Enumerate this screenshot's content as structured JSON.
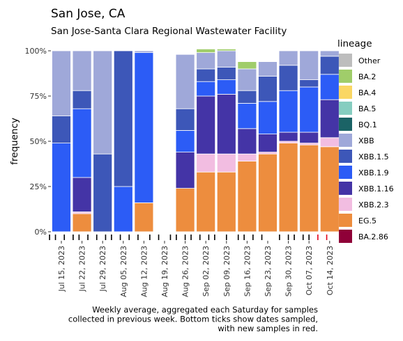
{
  "chart_data": {
    "type": "bar",
    "stacked": true,
    "title": "San Jose, CA",
    "subtitle": "San Jose-Santa Clara Regional Wastewater Facility",
    "ylabel": "frequency",
    "xlabel": "",
    "ylim": [
      0,
      1
    ],
    "y_ticks": [
      "0%",
      "25%",
      "50%",
      "75%",
      "100%"
    ],
    "x_tick_labels": [
      "Jul 15, 2023",
      "Jul 22, 2023",
      "Jul 29, 2023",
      "Aug 05, 2023",
      "Aug 12, 2023",
      "Aug 19, 2023",
      "Aug 26, 2023",
      "Sep 02, 2023",
      "Sep 09, 2023",
      "Sep 16, 2023",
      "Sep 23, 2023",
      "Sep 30, 2023",
      "Oct 07, 2023",
      "Oct 14, 2023"
    ],
    "categories": [
      "Jul 15, 2023",
      "Jul 22, 2023",
      "Jul 29, 2023",
      "Aug 05, 2023",
      "Aug 12, 2023",
      "Aug 19, 2023",
      "Aug 26, 2023",
      "Sep 02, 2023",
      "Sep 09, 2023",
      "Sep 16, 2023",
      "Sep 23, 2023",
      "Sep 30, 2023",
      "Oct 07, 2023",
      "Oct 14, 2023"
    ],
    "legend_title": "lineage",
    "legend_position": "right",
    "grid": false,
    "series": [
      {
        "name": "Other",
        "color": "#bdbdbd",
        "values": [
          0,
          0,
          0,
          0,
          0,
          0,
          0,
          0,
          0,
          0,
          0,
          0,
          0,
          0
        ]
      },
      {
        "name": "BA.2",
        "color": "#a0cd6a",
        "values": [
          0,
          0,
          0,
          0,
          0,
          0,
          0,
          0.02,
          0.01,
          0.04,
          0,
          0,
          0,
          0
        ]
      },
      {
        "name": "BA.4",
        "color": "#fad764",
        "values": [
          0,
          0,
          0,
          0,
          0,
          0,
          0,
          0,
          0,
          0,
          0,
          0,
          0,
          0
        ]
      },
      {
        "name": "BA.5",
        "color": "#86cdc0",
        "values": [
          0,
          0,
          0,
          0,
          0,
          0,
          0,
          0,
          0,
          0,
          0,
          0,
          0,
          0
        ]
      },
      {
        "name": "BQ.1",
        "color": "#1b6366",
        "values": [
          0,
          0,
          0,
          0,
          0,
          0,
          0,
          0,
          0,
          0,
          0,
          0,
          0,
          0
        ]
      },
      {
        "name": "XBB",
        "color": "#9fa8d9",
        "values": [
          0.36,
          0.22,
          0.57,
          0,
          0.01,
          0,
          0.3,
          0.09,
          0.09,
          0.12,
          0.08,
          0.08,
          0.16,
          0.03
        ]
      },
      {
        "name": "XBB.1.5",
        "color": "#3d57b8",
        "values": [
          0.15,
          0.1,
          0.43,
          0.75,
          0,
          0,
          0.12,
          0.07,
          0.07,
          0.07,
          0.14,
          0.14,
          0.04,
          0.1
        ]
      },
      {
        "name": "XBB.1.9",
        "color": "#2c5cf6",
        "values": [
          0.49,
          0.38,
          0,
          0.25,
          0.83,
          0,
          0.12,
          0.08,
          0.08,
          0.14,
          0.18,
          0.23,
          0.25,
          0.14
        ]
      },
      {
        "name": "XBB.1.16",
        "color": "#4434a6",
        "values": [
          0,
          0.19,
          0,
          0,
          0,
          0,
          0.2,
          0.32,
          0.33,
          0.14,
          0.1,
          0.05,
          0.06,
          0.21
        ]
      },
      {
        "name": "XBB.2.3",
        "color": "#f2bde1",
        "values": [
          0,
          0.01,
          0,
          0,
          0,
          0,
          0,
          0.1,
          0.1,
          0.04,
          0.01,
          0.01,
          0.01,
          0.05
        ]
      },
      {
        "name": "EG.5",
        "color": "#ed8d3e",
        "values": [
          0,
          0.1,
          0,
          0,
          0.16,
          0,
          0.24,
          0.33,
          0.33,
          0.39,
          0.43,
          0.49,
          0.48,
          0.47
        ]
      },
      {
        "name": "BA.2.86",
        "color": "#8f0038",
        "values": [
          0,
          0,
          0,
          0,
          0,
          0,
          0,
          0,
          0,
          0,
          0,
          0,
          0,
          0
        ]
      }
    ],
    "sample_ticks": {
      "black": [
        "Jul 11, 2023",
        "Jul 13, 2023",
        "Jul 16, 2023",
        "Jul 19, 2023",
        "Jul 21, 2023",
        "Jul 24, 2023",
        "Jul 27, 2023",
        "Jul 30, 2023",
        "Aug 01, 2023",
        "Aug 04, 2023",
        "Aug 07, 2023",
        "Aug 10, 2023",
        "Aug 14, 2023",
        "Aug 17, 2023",
        "Aug 21, 2023",
        "Aug 23, 2023",
        "Aug 26, 2023",
        "Aug 28, 2023",
        "Aug 31, 2023",
        "Sep 03, 2023",
        "Sep 05, 2023",
        "Sep 09, 2023",
        "Sep 13, 2023",
        "Sep 15, 2023",
        "Sep 18, 2023",
        "Sep 21, 2023",
        "Sep 27, 2023",
        "Sep 30, 2023",
        "Oct 02, 2023",
        "Oct 05, 2023",
        "Oct 07, 2023"
      ],
      "red": [
        "Oct 10, 2023",
        "Oct 13, 2023"
      ]
    },
    "caption": [
      "Weekly average, aggregated each Saturday for samples",
      "collected in previous week. Bottom ticks show dates sampled,",
      "with new samples in red."
    ]
  }
}
